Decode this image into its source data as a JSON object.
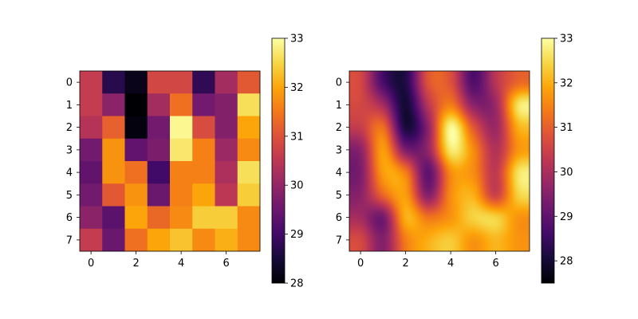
{
  "chart_data": [
    {
      "type": "heatmap",
      "interpolation": "nearest",
      "colormap": "inferno",
      "x_ticks": [
        0,
        2,
        4,
        6
      ],
      "y_ticks": [
        0,
        1,
        2,
        3,
        4,
        5,
        6,
        7
      ],
      "xlim": [
        -0.5,
        7.5
      ],
      "ylim": [
        7.5,
        -0.5
      ],
      "vmin": 28,
      "vmax": 33,
      "colorbar_ticks": [
        28,
        29,
        30,
        31,
        32,
        33
      ],
      "values": [
        [
          30.6,
          28.7,
          28.2,
          30.8,
          30.8,
          28.8,
          30.2,
          31.1
        ],
        [
          30.6,
          29.9,
          28.0,
          30.2,
          31.4,
          29.6,
          29.8,
          32.6
        ],
        [
          30.4,
          31.2,
          28.1,
          29.6,
          32.9,
          30.9,
          29.8,
          32.0
        ],
        [
          29.6,
          31.8,
          29.4,
          29.7,
          32.7,
          31.6,
          30.1,
          31.7
        ],
        [
          29.4,
          31.8,
          31.4,
          29.0,
          31.6,
          31.6,
          30.3,
          32.6
        ],
        [
          29.6,
          31.1,
          31.8,
          29.5,
          31.6,
          32.0,
          30.5,
          32.4
        ],
        [
          29.9,
          29.3,
          32.0,
          31.3,
          31.7,
          32.4,
          32.4,
          31.7
        ],
        [
          30.6,
          29.5,
          31.4,
          32.0,
          32.3,
          31.7,
          32.1,
          31.7
        ]
      ]
    },
    {
      "type": "heatmap",
      "interpolation": "bicubic",
      "colormap": "inferno",
      "x_ticks": [
        0,
        2,
        4,
        6
      ],
      "y_ticks": [
        0,
        1,
        2,
        3,
        4,
        5,
        6,
        7
      ],
      "xlim": [
        -0.5,
        7.5
      ],
      "ylim": [
        7.5,
        -0.5
      ],
      "vmin": 27.5,
      "vmax": 33.0,
      "colorbar_ticks": [
        28,
        29,
        30,
        31,
        32,
        33
      ]
    }
  ]
}
